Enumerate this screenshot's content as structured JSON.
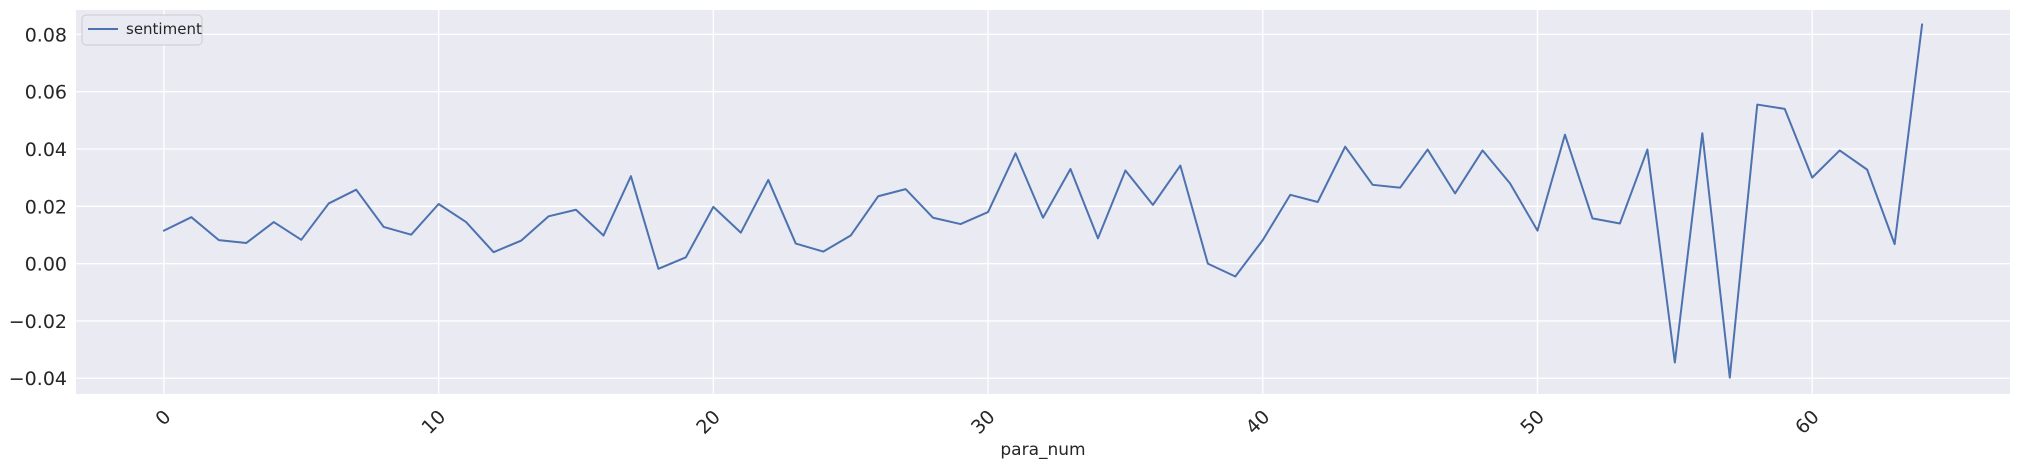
{
  "chart_data": {
    "type": "line",
    "title": "",
    "xlabel": "para_num",
    "ylabel": "",
    "xlim": [
      -3.2,
      67.2
    ],
    "ylim": [
      -0.0455,
      0.0885
    ],
    "xticks": [
      0,
      10,
      20,
      30,
      40,
      50,
      60
    ],
    "yticks": [
      -0.04,
      -0.02,
      0.0,
      0.02,
      0.04,
      0.06,
      0.08
    ],
    "ytick_labels": [
      "−0.04",
      "−0.02",
      "0.00",
      "0.02",
      "0.04",
      "0.06",
      "0.08"
    ],
    "xtick_rotation": 45,
    "grid": true,
    "legend": "upper-left",
    "colors": {
      "background": "#eaeaf2",
      "grid": "#ffffff",
      "line": "#4c72b0"
    },
    "series": [
      {
        "name": "sentiment",
        "x": [
          0,
          1,
          2,
          3,
          4,
          5,
          6,
          7,
          8,
          9,
          10,
          11,
          12,
          13,
          14,
          15,
          16,
          17,
          18,
          19,
          20,
          21,
          22,
          23,
          24,
          25,
          26,
          27,
          28,
          29,
          30,
          31,
          32,
          33,
          34,
          35,
          36,
          37,
          38,
          39,
          40,
          41,
          42,
          43,
          44,
          45,
          46,
          47,
          48,
          49,
          50,
          51,
          52,
          53,
          54,
          55,
          56,
          57,
          58,
          59,
          60,
          61,
          62,
          63,
          64
        ],
        "values": [
          0.0115,
          0.0162,
          0.0082,
          0.0072,
          0.0145,
          0.0083,
          0.021,
          0.0258,
          0.0128,
          0.0101,
          0.0208,
          0.0145,
          0.004,
          0.008,
          0.0165,
          0.0188,
          0.0098,
          0.0305,
          -0.0018,
          0.0022,
          0.0198,
          0.0108,
          0.0292,
          0.007,
          0.0042,
          0.0098,
          0.0235,
          0.026,
          0.016,
          0.0138,
          0.018,
          0.0385,
          0.016,
          0.033,
          0.0088,
          0.0325,
          0.0205,
          0.0342,
          0.0,
          -0.0045,
          0.0082,
          0.024,
          0.0215,
          0.0408,
          0.0275,
          0.0265,
          0.0398,
          0.0245,
          0.0395,
          0.028,
          0.0115,
          0.045,
          0.0158,
          0.014,
          0.0398,
          -0.0345,
          0.0455,
          -0.0398,
          0.0555,
          0.054,
          0.03,
          0.0395,
          0.0328,
          0.0068,
          0.0835
        ]
      }
    ]
  }
}
